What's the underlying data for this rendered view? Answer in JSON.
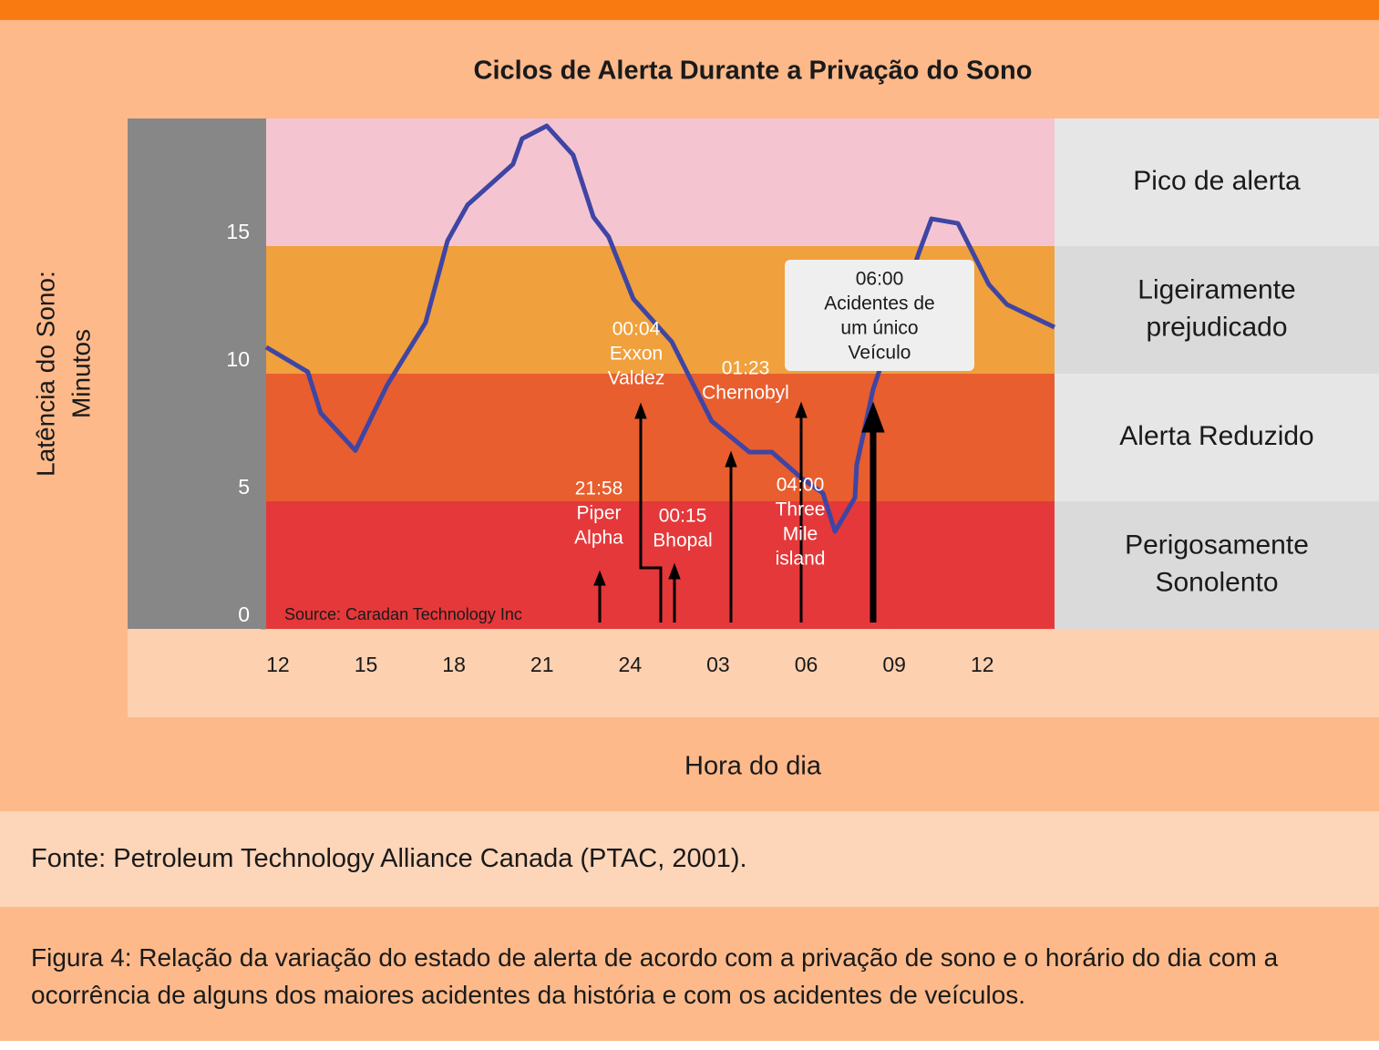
{
  "chart_data": {
    "type": "line",
    "title": "Ciclos de Alerta Durante a Privação do Sono",
    "y_label": [
      "Latência do Sono:",
      "Minutos"
    ],
    "x_label": "Hora do dia",
    "source": "Source: Caradan Technology Inc",
    "xlim": [
      11.6,
      38.46
    ],
    "xticks": [
      12,
      15,
      18,
      21,
      24,
      {
        "value": 27,
        "label": "03"
      },
      {
        "value": 30,
        "label": "06"
      },
      {
        "value": 33,
        "label": "09"
      },
      {
        "value": 36,
        "label": "12"
      }
    ],
    "ylim": [
      0,
      20
    ],
    "yticks": [
      0,
      5,
      10,
      15
    ],
    "x": [
      11.6,
      13.02,
      13.46,
      14.64,
      15.73,
      17.03,
      17.78,
      18.46,
      20.01,
      20.32,
      21.16,
      22.06,
      22.75,
      23.27,
      24.11,
      25.42,
      26.78,
      28.06,
      28.83,
      29.86,
      30.57,
      30.98,
      31.66,
      31.72,
      32.28,
      33.83,
      34.27,
      35.17,
      36.22,
      36.84,
      38.46
    ],
    "series": [
      {
        "color": "#3f45a3",
        "values": [
          11.04,
          10.07,
          8.46,
          6.99,
          9.57,
          12.0,
          15.21,
          16.61,
          18.21,
          19.21,
          19.71,
          18.57,
          16.14,
          15.36,
          12.93,
          11.25,
          8.14,
          6.93,
          6.93,
          5.89,
          5.32,
          3.82,
          5.14,
          6.43,
          9.39,
          14.71,
          16.07,
          15.89,
          13.5,
          12.71,
          11.82
        ]
      }
    ],
    "bands": [
      {
        "range": [
          15,
          20
        ],
        "color": "#f4c5d1",
        "label": [
          "Pico de alerta"
        ]
      },
      {
        "range": [
          10,
          15
        ],
        "color": "#f0a03c",
        "label": [
          "Ligeiramente",
          "prejudicado"
        ]
      },
      {
        "range": [
          5,
          10
        ],
        "color": "#e85e2e",
        "label": [
          "Alerta Reduzido"
        ]
      },
      {
        "range": [
          0,
          5
        ],
        "color": "#e5383a",
        "label": [
          "Perigosamente",
          "Sonolento"
        ]
      }
    ],
    "annotations": [
      {
        "time": "21:58",
        "lines": [
          "Piper",
          "Alpha"
        ]
      },
      {
        "time": "00:04",
        "lines": [
          "Exxon",
          "Valdez"
        ]
      },
      {
        "time": "00:15",
        "lines": [
          "Bhopal"
        ]
      },
      {
        "time": "01:23",
        "lines": [
          "Chernobyl"
        ]
      },
      {
        "time": "04:00",
        "lines": [
          "Three",
          "Mile",
          "island"
        ]
      },
      {
        "time": "06:00",
        "lines": [
          "Acidentes de",
          "um único",
          "Veículo"
        ]
      }
    ]
  },
  "source_note": "Fonte: Petroleum Technology Alliance Canada (PTAC, 2001).",
  "caption": "Figura 4: Relação da variação do estado de alerta de acordo com a privação de sono e o horário do dia com a ocorrência de alguns dos maiores acidentes da história e com os acidentes de veículos."
}
